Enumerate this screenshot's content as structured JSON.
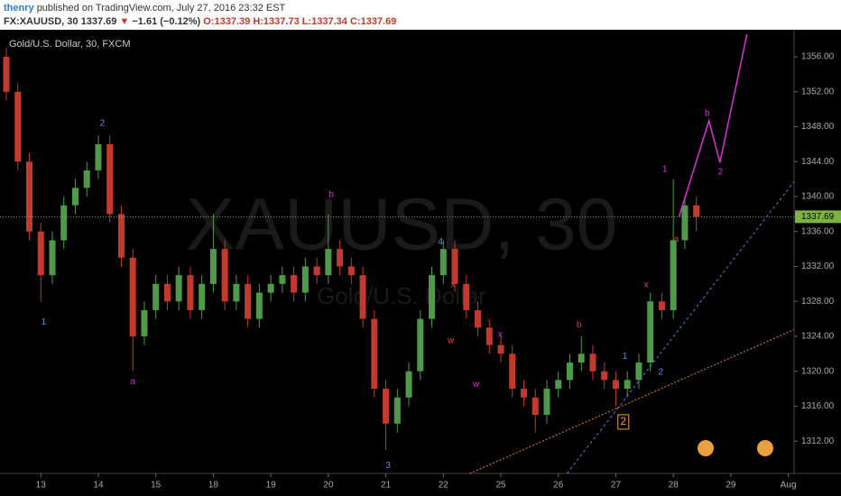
{
  "header": {
    "author": "thenry",
    "published": "published on TradingView.com, July 27, 2016 23:32 EST",
    "symbol": "FX:XAUUSD, 30",
    "last": "1337.69",
    "arrow": "▼",
    "change": "−1.61 (−0.12%)",
    "open": "O:1337.39",
    "high": "H:1337.73",
    "low": "L:1337.34",
    "close": "C:1337.69"
  },
  "chart_data": {
    "type": "candlestick",
    "title": "Gold/U.S. Dollar, 30, FXCM",
    "watermark": "XAUUSD, 30",
    "watermark_subtitle": "Gold/U.S. Dollar",
    "up_color": "#4f9a4a",
    "down_color": "#c23a2e",
    "x": [
      -0.6,
      -0.4,
      -0.2,
      0,
      0.2,
      0.4,
      0.6,
      0.8,
      1,
      1.2,
      1.4,
      1.6,
      1.8,
      2,
      2.2,
      2.4,
      2.6,
      2.8,
      3,
      3.2,
      3.4,
      3.6,
      3.8,
      4,
      4.2,
      4.4,
      4.6,
      4.8,
      5,
      5.2,
      5.4,
      5.6,
      5.8,
      6,
      6.2,
      6.4,
      6.6,
      6.8,
      7,
      7.2,
      7.4,
      7.6,
      7.8,
      8,
      8.2,
      8.4,
      8.6,
      8.8,
      9,
      9.2,
      9.4,
      9.6,
      9.8,
      10,
      10.2,
      10.4,
      10.6,
      10.8,
      11,
      11.2,
      11.4
    ],
    "open": [
      1356,
      1352,
      1344,
      1336,
      1331,
      1335,
      1339,
      1341,
      1343,
      1346,
      1338,
      1333,
      1324,
      1327,
      1330,
      1328,
      1331,
      1327,
      1330,
      1334,
      1328,
      1330,
      1326,
      1329,
      1330,
      1331,
      1329,
      1332,
      1331,
      1334,
      1332,
      1331,
      1326,
      1318,
      1314,
      1317,
      1320,
      1326,
      1331,
      1334,
      1330,
      1327,
      1325,
      1323,
      1322,
      1318,
      1317,
      1315,
      1318,
      1319,
      1321,
      1322,
      1320,
      1319,
      1318,
      1319,
      1321,
      1328,
      1327,
      1335,
      1339
    ],
    "high": [
      1357,
      1353,
      1345,
      1337,
      1336,
      1340,
      1342,
      1344,
      1347,
      1347,
      1339,
      1334,
      1328,
      1331,
      1331,
      1332,
      1332,
      1331,
      1338,
      1335,
      1331,
      1331,
      1330,
      1331,
      1332,
      1332,
      1333,
      1333,
      1338,
      1335,
      1333,
      1332,
      1327,
      1319,
      1318,
      1321,
      1327,
      1332,
      1335,
      1335,
      1331,
      1328,
      1326,
      1324,
      1323,
      1319,
      1318,
      1319,
      1320,
      1322,
      1324,
      1323,
      1321,
      1320,
      1320,
      1322,
      1329,
      1329,
      1342,
      1340,
      1340
    ],
    "low": [
      1351,
      1343,
      1335,
      1328,
      1330,
      1334,
      1338,
      1340,
      1342,
      1337,
      1332,
      1320,
      1323,
      1326,
      1327,
      1327,
      1326,
      1326,
      1329,
      1327,
      1327,
      1325,
      1325,
      1328,
      1329,
      1328,
      1328,
      1330,
      1330,
      1331,
      1330,
      1325,
      1317,
      1311,
      1313,
      1316,
      1319,
      1325,
      1330,
      1329,
      1326,
      1324,
      1322,
      1321,
      1317,
      1316,
      1313,
      1314,
      1317,
      1318,
      1320,
      1319,
      1318,
      1316,
      1317,
      1318,
      1320,
      1326,
      1326,
      1334,
      1336
    ],
    "close": [
      1352,
      1344,
      1336,
      1331,
      1335,
      1339,
      1341,
      1343,
      1346,
      1338,
      1333,
      1324,
      1327,
      1330,
      1328,
      1331,
      1327,
      1330,
      1334,
      1328,
      1330,
      1326,
      1329,
      1330,
      1331,
      1329,
      1332,
      1331,
      1334,
      1332,
      1331,
      1326,
      1318,
      1314,
      1317,
      1320,
      1326,
      1331,
      1334,
      1330,
      1327,
      1325,
      1323,
      1322,
      1318,
      1317,
      1315,
      1318,
      1319,
      1321,
      1322,
      1320,
      1319,
      1318,
      1319,
      1321,
      1328,
      1327,
      1335,
      1339,
      1337.69
    ],
    "xlim": [
      -0.71,
      13.1
    ],
    "xticks": [
      {
        "value": 0,
        "label": "13"
      },
      {
        "value": 1,
        "label": "14"
      },
      {
        "value": 2,
        "label": "15"
      },
      {
        "value": 3,
        "label": "18"
      },
      {
        "value": 4,
        "label": "19"
      },
      {
        "value": 5,
        "label": "20"
      },
      {
        "value": 6,
        "label": "21"
      },
      {
        "value": 7,
        "label": "22"
      },
      {
        "value": 8,
        "label": "25"
      },
      {
        "value": 9,
        "label": "26"
      },
      {
        "value": 10,
        "label": "27"
      },
      {
        "value": 11,
        "label": "28"
      },
      {
        "value": 12,
        "label": "29"
      },
      {
        "value": 13,
        "label": "Aug"
      }
    ],
    "ylim": [
      1308.3,
      1359.1
    ],
    "yticks": [
      {
        "value": 1312,
        "label": "1312.00"
      },
      {
        "value": 1316,
        "label": "1316.00"
      },
      {
        "value": 1320,
        "label": "1320.00"
      },
      {
        "value": 1324,
        "label": "1324.00"
      },
      {
        "value": 1328,
        "label": "1328.00"
      },
      {
        "value": 1332,
        "label": "1332.00"
      },
      {
        "value": 1336,
        "label": "1336.00"
      },
      {
        "value": 1340,
        "label": "1340.00"
      },
      {
        "value": 1344,
        "label": "1344.00"
      },
      {
        "value": 1348,
        "label": "1348.00"
      },
      {
        "value": 1352,
        "label": "1352.00"
      },
      {
        "value": 1356,
        "label": "1356.00"
      }
    ],
    "last_price": {
      "value": 1337.69,
      "label": "1337.69",
      "color": "#7cb342"
    },
    "lines": [
      {
        "color": "#d633d6",
        "style": "solid",
        "x": [
          11.1,
          11.62,
          11.81,
          12.28
        ],
        "y": [
          1337.7,
          1348.7,
          1343.9,
          1358.6
        ]
      },
      {
        "color": "#4a7fd8",
        "style": "dashed",
        "x": [
          9.15,
          13.11
        ],
        "y": [
          1308.3,
          1341.8
        ]
      },
      {
        "color": "#e08a2c",
        "style": "dotted",
        "x": [
          7.46,
          13.11
        ],
        "y": [
          1308.3,
          1324.8
        ]
      }
    ],
    "annotations": [
      {
        "text": "2",
        "x": 1.07,
        "y": 1348.4,
        "color": "#5b8def"
      },
      {
        "text": "1",
        "x": 0.05,
        "y": 1325.6,
        "color": "#5b8def"
      },
      {
        "text": "a",
        "x": 1.6,
        "y": 1318.8,
        "color": "#d633d6"
      },
      {
        "text": "b",
        "x": 5.05,
        "y": 1340.2,
        "color": "#d633d6"
      },
      {
        "text": "3",
        "x": 6.04,
        "y": 1309.2,
        "color": "#5b8def"
      },
      {
        "text": "4",
        "x": 6.95,
        "y": 1334.8,
        "color": "#5b8def"
      },
      {
        "text": "x",
        "x": 7.17,
        "y": 1329.9,
        "color": "#e0413a"
      },
      {
        "text": "w",
        "x": 7.13,
        "y": 1323.5,
        "color": "#e0413a"
      },
      {
        "text": "w",
        "x": 7.57,
        "y": 1318.5,
        "color": "#d633d6"
      },
      {
        "text": "x",
        "x": 7.99,
        "y": 1324.2,
        "color": "#d633d6"
      },
      {
        "text": "b",
        "x": 9.36,
        "y": 1325.3,
        "color": "#e0413a"
      },
      {
        "text": "1",
        "x": 10.16,
        "y": 1321.7,
        "color": "#5b8def"
      },
      {
        "text": "2",
        "x": 10.78,
        "y": 1319.9,
        "color": "#5b8def"
      },
      {
        "text": "x",
        "x": 10.53,
        "y": 1329.9,
        "color": "#e0413a"
      },
      {
        "text": "1",
        "x": 10.85,
        "y": 1343.1,
        "color": "#d633d6"
      },
      {
        "text": "a",
        "x": 11.05,
        "y": 1335.1,
        "color": "#e0413a"
      },
      {
        "text": "b",
        "x": 11.59,
        "y": 1349.5,
        "color": "#d633d6"
      },
      {
        "text": "2",
        "x": 11.82,
        "y": 1342.8,
        "color": "#d633d6"
      },
      {
        "text": "2",
        "x": 10.13,
        "y": 1314.2,
        "color": "#f0a030",
        "box": true
      }
    ]
  }
}
